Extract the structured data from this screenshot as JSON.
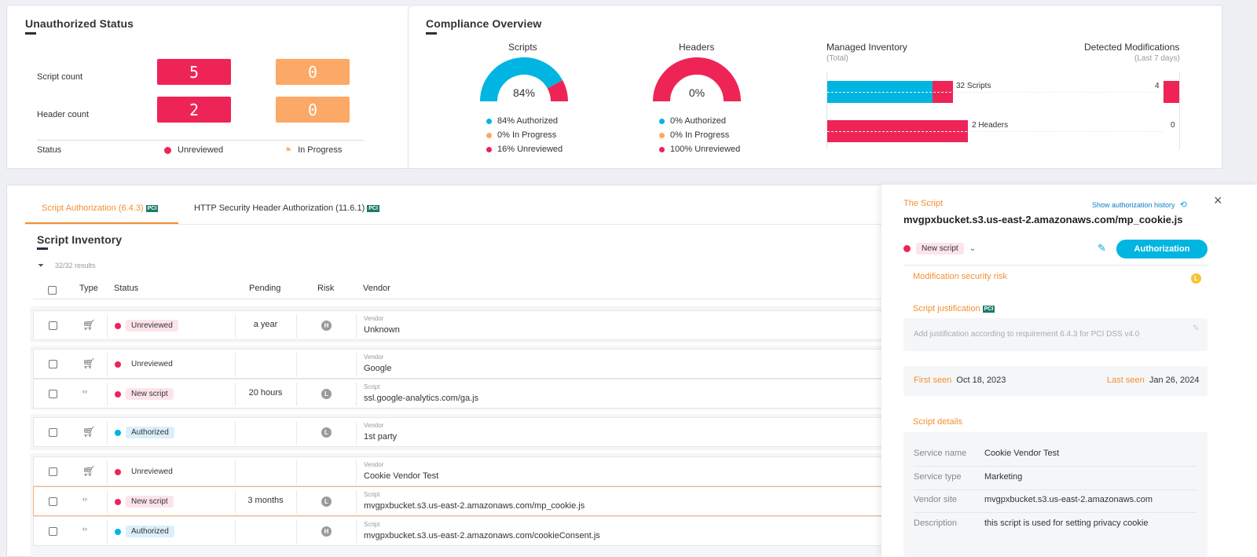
{
  "unauth": {
    "title": "Unauthorized Status",
    "script_label": "Script count",
    "header_label": "Header count",
    "script_red": "5",
    "script_orange": "0",
    "header_red": "2",
    "header_orange": "0",
    "status_label": "Status",
    "unreviewed": "Unreviewed",
    "in_progress": "In Progress"
  },
  "compliance": {
    "title": "Compliance Overview",
    "scripts": {
      "title": "Scripts",
      "pct": "84%",
      "authorized": 84,
      "in_progress": 0,
      "unreviewed": 16,
      "legend": [
        "84% Authorized",
        "0% In Progress",
        "16% Unreviewed"
      ]
    },
    "headers": {
      "title": "Headers",
      "pct": "0%",
      "authorized": 0,
      "in_progress": 0,
      "unreviewed": 100,
      "legend": [
        "0% Authorized",
        "0% In Progress",
        "100% Unreviewed"
      ]
    },
    "managed": {
      "title": "Managed Inventory",
      "sub": "(Total)",
      "scripts_label": "32 Scripts",
      "headers_label": "2 Headers",
      "scripts_authorized": 27,
      "scripts_unreviewed": 5,
      "headers_unreviewed": 2
    },
    "detected": {
      "title": "Detected Modifications",
      "sub": "(Last 7 days)",
      "scripts": "4",
      "headers": "0"
    }
  },
  "colors": {
    "blue": "#00b5e2",
    "red": "#ee2457",
    "orange": "#fca866",
    "accent": "#f39032"
  },
  "tabs": [
    {
      "label": "Script Authorization (6.4.3)",
      "pci": "PCI"
    },
    {
      "label": "HTTP Security Header Authorization (11.6.1)",
      "pci": "PCI"
    }
  ],
  "inventory": {
    "title": "Script Inventory",
    "results": "32/32 results",
    "columns": {
      "type": "Type",
      "status": "Status",
      "pending": "Pending",
      "risk": "Risk",
      "vendor": "Vendor"
    }
  },
  "rows": [
    {
      "type": "cart-icon",
      "status": "Unreviewed",
      "pending": "a year",
      "risk": "H",
      "sublabel": "Vendor",
      "name": "Unknown"
    },
    {
      "type": "cart-icon",
      "status": "Unreviewed",
      "pending": "",
      "risk": "",
      "sublabel": "Vendor",
      "name": "Google"
    },
    {
      "type": "code-icon",
      "status": "New script",
      "pending": "20 hours",
      "risk": "L",
      "sublabel": "Script",
      "name": "ssl.google-analytics.com/ga.js"
    },
    {
      "type": "cart-icon",
      "status": "Authorized",
      "pending": "",
      "risk": "L",
      "sublabel": "Vendor",
      "name": "1st party"
    },
    {
      "type": "cart-icon",
      "status": "Unreviewed",
      "pending": "",
      "risk": "",
      "sublabel": "Vendor",
      "name": "Cookie Vendor Test"
    },
    {
      "type": "code-icon",
      "status": "New script",
      "pending": "3 months",
      "risk": "L",
      "sublabel": "Script",
      "name": "mvgpxbucket.s3.us-east-2.amazonaws.com/mp_cookie.js"
    },
    {
      "type": "code-icon",
      "status": "Authorized",
      "pending": "",
      "risk": "H",
      "sublabel": "Script",
      "name": "mvgpxbucket.s3.us-east-2.amazonaws.com/cookieConsent.js"
    }
  ],
  "panel": {
    "label": "The Script",
    "history": "Show authorization history",
    "script": "mvgpxbucket.s3.us-east-2.amazonaws.com/mp_cookie.js",
    "status": "New script",
    "auth_button": "Authorization",
    "mod_risk": "Modification security risk",
    "mod_risk_badge": "L",
    "justification_label": "Script justification",
    "justification_placeholder": "Add justification according to requirement 6.4.3 for PCI DSS v4.0",
    "first_seen_label": "First seen",
    "first_seen": "Oct 18, 2023",
    "last_seen_label": "Last seen",
    "last_seen": "Jan 26, 2024",
    "details_label": "Script details",
    "details": [
      {
        "k": "Service name",
        "v": "Cookie Vendor Test"
      },
      {
        "k": "Service type",
        "v": "Marketing"
      },
      {
        "k": "Vendor site",
        "v": "mvgpxbucket.s3.us-east-2.amazonaws.com"
      },
      {
        "k": "Description",
        "v": "this script is used for setting privacy cookie"
      }
    ]
  }
}
